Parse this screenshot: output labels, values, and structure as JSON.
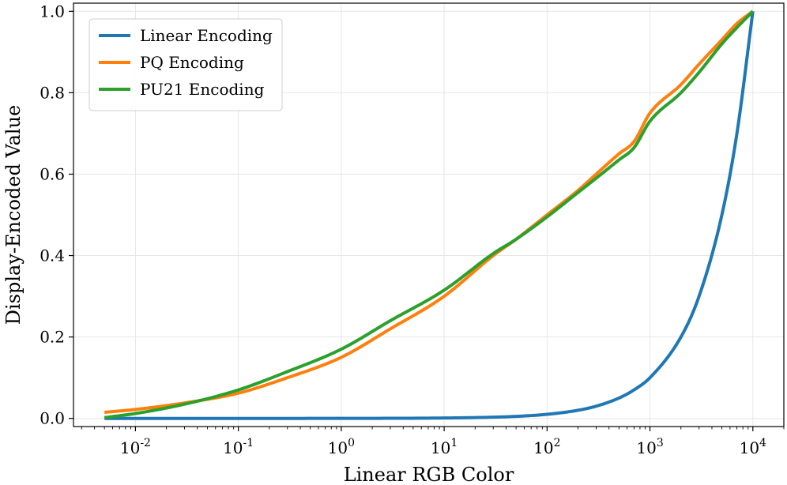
{
  "chart_data": {
    "type": "line",
    "title": "",
    "xlabel": "Linear RGB Color",
    "ylabel": "Display-Encoded Value",
    "xscale": "log",
    "xlim": [
      0.0025,
      20000
    ],
    "ylim": [
      -0.02,
      1.02
    ],
    "grid": true,
    "legend_position": "top-left",
    "x_ticks": [
      {
        "value": 0.01,
        "base": "10",
        "exp": "-2"
      },
      {
        "value": 0.1,
        "base": "10",
        "exp": "-1"
      },
      {
        "value": 1,
        "base": "10",
        "exp": "0"
      },
      {
        "value": 10,
        "base": "10",
        "exp": "1"
      },
      {
        "value": 100,
        "base": "10",
        "exp": "2"
      },
      {
        "value": 1000,
        "base": "10",
        "exp": "3"
      },
      {
        "value": 10000,
        "base": "10",
        "exp": "4"
      }
    ],
    "y_ticks": [
      {
        "value": 0.0,
        "label": "0.0"
      },
      {
        "value": 0.2,
        "label": "0.2"
      },
      {
        "value": 0.4,
        "label": "0.4"
      },
      {
        "value": 0.6,
        "label": "0.6"
      },
      {
        "value": 0.8,
        "label": "0.8"
      },
      {
        "value": 1.0,
        "label": "1.0"
      }
    ],
    "x": [
      0.005,
      0.01,
      0.03,
      0.1,
      0.3,
      1,
      3,
      10,
      30,
      50,
      100,
      200,
      300,
      500,
      700,
      1000,
      2000,
      3000,
      5000,
      7000,
      10000
    ],
    "series": [
      {
        "name": "Linear Encoding",
        "color": "#1f77b4",
        "values": [
          0.0,
          0.0,
          0.0,
          0.0,
          0.0,
          0.0001,
          0.0003,
          0.001,
          0.003,
          0.005,
          0.01,
          0.02,
          0.03,
          0.05,
          0.07,
          0.1,
          0.2,
          0.3,
          0.5,
          0.7,
          1.0
        ]
      },
      {
        "name": "PQ Encoding",
        "color": "#ff7f0e",
        "values": [
          0.015,
          0.022,
          0.038,
          0.062,
          0.1,
          0.15,
          0.22,
          0.3,
          0.4,
          0.44,
          0.5,
          0.56,
          0.6,
          0.65,
          0.68,
          0.75,
          0.82,
          0.87,
          0.93,
          0.97,
          1.0
        ]
      },
      {
        "name": "PU21 Encoding",
        "color": "#2ca02c",
        "values": [
          0.002,
          0.012,
          0.035,
          0.07,
          0.115,
          0.17,
          0.24,
          0.315,
          0.405,
          0.44,
          0.495,
          0.555,
          0.59,
          0.635,
          0.665,
          0.73,
          0.8,
          0.85,
          0.92,
          0.96,
          1.0
        ]
      }
    ]
  }
}
